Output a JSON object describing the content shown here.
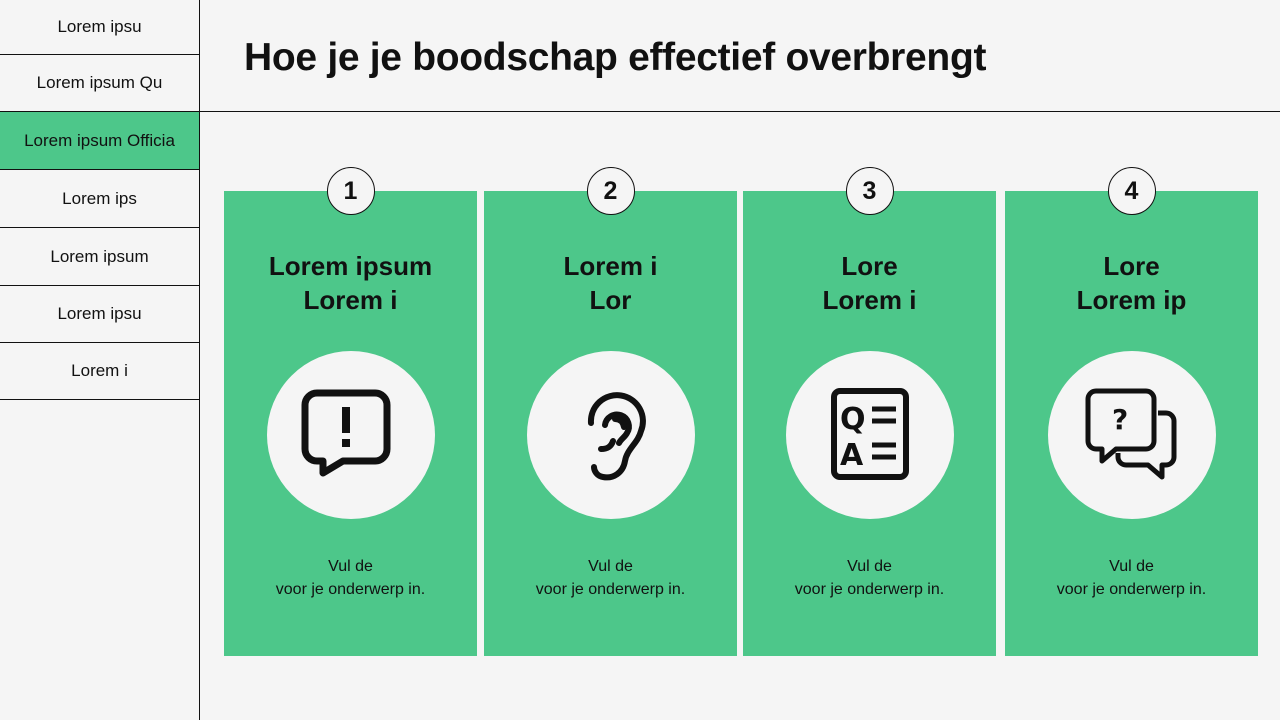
{
  "sidebar": {
    "items": [
      {
        "label": "Lorem ipsu",
        "active": false
      },
      {
        "label": "Lorem ipsum Qu",
        "active": false
      },
      {
        "label": "Lorem ipsum Officia",
        "active": true
      },
      {
        "label": "Lorem ips",
        "active": false
      },
      {
        "label": "Lorem ipsum",
        "active": false
      },
      {
        "label": "Lorem ipsu",
        "active": false
      },
      {
        "label": "Lorem i",
        "active": false
      }
    ]
  },
  "header": {
    "title": "Hoe je je boodschap effectief overbrengt"
  },
  "colors": {
    "accent": "#4dc78a",
    "background": "#f5f5f5"
  },
  "cards": [
    {
      "number": "1",
      "title1": "Lorem ipsum",
      "title2": "Lorem i",
      "icon": "alert-speech-bubble-icon",
      "body1": "Vul de",
      "body2": "voor je onderwerp in."
    },
    {
      "number": "2",
      "title1": "Lorem i",
      "title2": "Lor",
      "icon": "ear-icon",
      "body1": "Vul de",
      "body2": "voor je onderwerp in."
    },
    {
      "number": "3",
      "title1": "Lore",
      "title2": "Lorem i",
      "icon": "qa-document-icon",
      "body1": "Vul de",
      "body2": "voor je onderwerp in."
    },
    {
      "number": "4",
      "title1": "Lore",
      "title2": "Lorem ip",
      "icon": "question-chat-bubbles-icon",
      "body1": "Vul de",
      "body2": "voor je onderwerp in."
    }
  ]
}
